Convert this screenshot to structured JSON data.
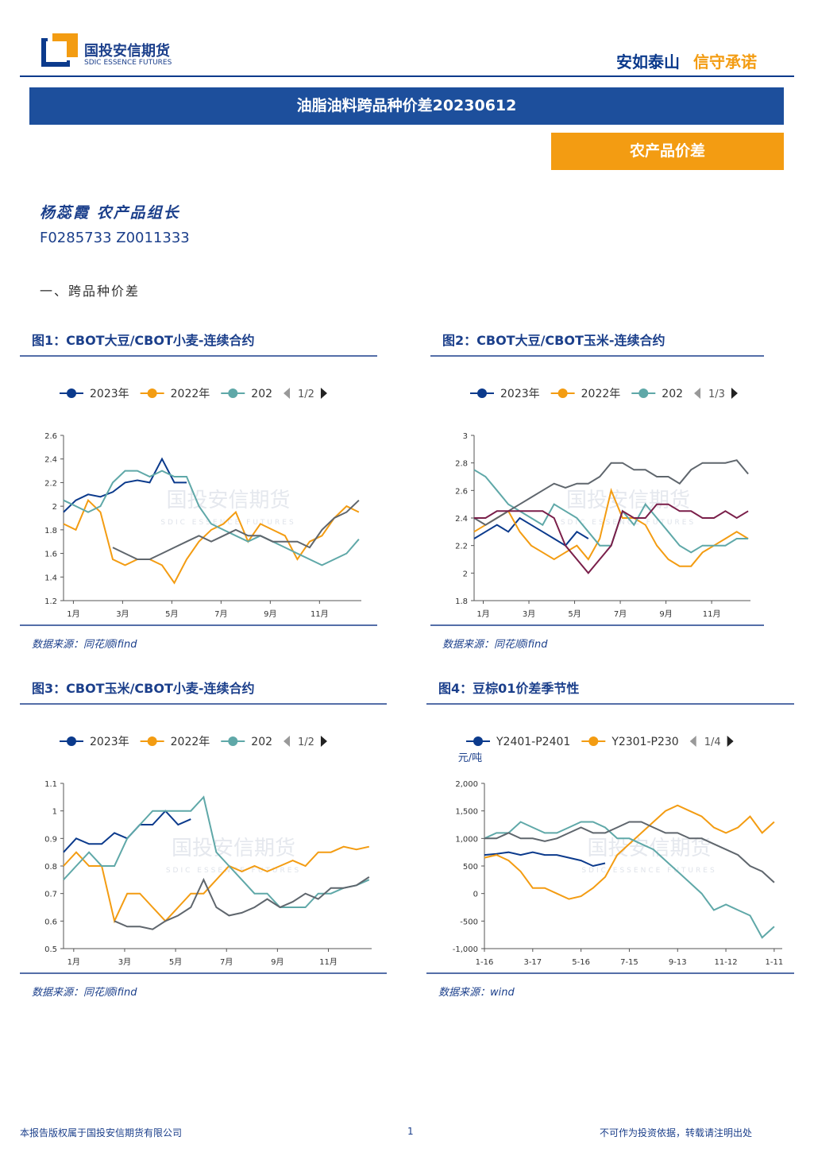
{
  "header": {
    "company": "国投安信期货",
    "company_en": "SDIC ESSENCE FUTURES",
    "slogan_a": "安如泰山",
    "slogan_b": "信守承诺"
  },
  "title": "油脂油料跨品种价差20230612",
  "tag": "农产品价差",
  "author": "杨蕊霞 农产品组长",
  "codes": "F0285733 Z0011333",
  "section": "一、跨品种价差",
  "watermark": "国投安信期货",
  "watermark_en": "SDIC ESSENCE FUTURES",
  "chart_data": [
    {
      "type": "line",
      "title": "图1：CBOT大豆/CBOT小麦-连续合约",
      "source": "数据来源：同花顺ifind",
      "legend_page": "1/2",
      "x": [
        0.6,
        1.1,
        1.6,
        2.1,
        2.6,
        3.1,
        3.6,
        4.1,
        4.6,
        5.1,
        5.6,
        6.1,
        6.6,
        7.1,
        7.6,
        8.1,
        8.6,
        9.1,
        9.6,
        10.1,
        10.6,
        11.1,
        11.6,
        12.1,
        12.6
      ],
      "xlim": [
        0.6,
        12.7
      ],
      "xticks": [
        {
          "value": 1,
          "label": "1月"
        },
        {
          "value": 3,
          "label": "3月"
        },
        {
          "value": 5,
          "label": "5月"
        },
        {
          "value": 7,
          "label": "7月"
        },
        {
          "value": 9,
          "label": "9月"
        },
        {
          "value": 11,
          "label": "11月"
        }
      ],
      "ylim": [
        1.2,
        2.6
      ],
      "yticks": [
        1.2,
        1.4,
        1.6,
        1.8,
        2,
        2.2,
        2.4,
        2.6
      ],
      "series": [
        {
          "name": "2023年",
          "color": "#0b3a8c",
          "values": [
            1.95,
            2.05,
            2.1,
            2.08,
            2.12,
            2.2,
            2.22,
            2.2,
            2.4,
            2.2,
            2.2,
            null,
            null,
            null,
            null,
            null,
            null,
            null,
            null,
            null,
            null,
            null,
            null,
            null,
            null
          ]
        },
        {
          "name": "2022年",
          "color": "#f39c12",
          "values": [
            1.85,
            1.8,
            2.05,
            1.95,
            1.55,
            1.5,
            1.55,
            1.55,
            1.5,
            1.35,
            1.55,
            1.7,
            1.8,
            1.85,
            1.95,
            1.7,
            1.85,
            1.8,
            1.75,
            1.55,
            1.7,
            1.75,
            1.9,
            2.0,
            1.95
          ]
        },
        {
          "name": "202",
          "color": "#5fa8a8",
          "values": [
            2.05,
            2.0,
            1.95,
            2.0,
            2.2,
            2.3,
            2.3,
            2.25,
            2.3,
            2.25,
            2.25,
            2.0,
            1.85,
            1.8,
            1.75,
            1.7,
            1.75,
            1.7,
            1.65,
            1.6,
            1.55,
            1.5,
            1.55,
            1.6,
            1.72
          ]
        },
        {
          "color": "#5f666d",
          "values": [
            null,
            null,
            null,
            null,
            1.65,
            1.6,
            1.55,
            1.55,
            1.6,
            1.65,
            1.7,
            1.75,
            1.7,
            1.75,
            1.8,
            1.75,
            1.75,
            1.7,
            1.7,
            1.7,
            1.65,
            1.8,
            1.9,
            1.95,
            2.05
          ]
        }
      ]
    },
    {
      "type": "line",
      "title": "图2：CBOT大豆/CBOT玉米-连续合约",
      "source": "数据来源：同花顺ifind",
      "legend_page": "1/3",
      "x": [
        0.6,
        1.1,
        1.6,
        2.1,
        2.6,
        3.1,
        3.6,
        4.1,
        4.6,
        5.1,
        5.6,
        6.1,
        6.6,
        7.1,
        7.6,
        8.1,
        8.6,
        9.1,
        9.6,
        10.1,
        10.6,
        11.1,
        11.6,
        12.1,
        12.6
      ],
      "xlim": [
        0.6,
        12.7
      ],
      "xticks": [
        {
          "value": 1,
          "label": "1月"
        },
        {
          "value": 3,
          "label": "3月"
        },
        {
          "value": 5,
          "label": "5月"
        },
        {
          "value": 7,
          "label": "7月"
        },
        {
          "value": 9,
          "label": "9月"
        },
        {
          "value": 11,
          "label": "11月"
        }
      ],
      "ylim": [
        1.8,
        3
      ],
      "yticks": [
        1.8,
        2,
        2.2,
        2.4,
        2.6,
        2.8,
        3
      ],
      "series": [
        {
          "name": "2023年",
          "color": "#0b3a8c",
          "values": [
            2.25,
            2.3,
            2.35,
            2.3,
            2.4,
            2.35,
            2.3,
            2.25,
            2.2,
            2.3,
            2.25,
            null,
            null,
            null,
            null,
            null,
            null,
            null,
            null,
            null,
            null,
            null,
            null,
            null,
            null
          ]
        },
        {
          "name": "2022年",
          "color": "#f39c12",
          "values": [
            2.3,
            2.35,
            2.4,
            2.45,
            2.3,
            2.2,
            2.15,
            2.1,
            2.15,
            2.2,
            2.1,
            2.25,
            2.6,
            2.4,
            2.4,
            2.35,
            2.2,
            2.1,
            2.05,
            2.05,
            2.15,
            2.2,
            2.25,
            2.3,
            2.25
          ]
        },
        {
          "name": "202",
          "color": "#5fa8a8",
          "values": [
            2.75,
            2.7,
            2.6,
            2.5,
            2.45,
            2.4,
            2.35,
            2.5,
            2.45,
            2.4,
            2.3,
            2.2,
            2.2,
            2.45,
            2.35,
            2.5,
            2.4,
            2.3,
            2.2,
            2.15,
            2.2,
            2.2,
            2.2,
            2.25,
            2.25
          ]
        },
        {
          "color": "#5f666d",
          "values": [
            2.4,
            2.35,
            2.4,
            2.45,
            2.5,
            2.55,
            2.6,
            2.65,
            2.62,
            2.65,
            2.65,
            2.7,
            2.8,
            2.8,
            2.75,
            2.75,
            2.7,
            2.7,
            2.65,
            2.75,
            2.8,
            2.8,
            2.8,
            2.82,
            2.72
          ]
        },
        {
          "color": "#7a1f4a",
          "values": [
            2.4,
            2.4,
            2.45,
            2.45,
            2.45,
            2.45,
            2.45,
            2.4,
            2.2,
            2.1,
            2.0,
            2.1,
            2.2,
            2.45,
            2.4,
            2.4,
            2.5,
            2.5,
            2.45,
            2.45,
            2.4,
            2.4,
            2.45,
            2.4,
            2.45
          ]
        }
      ]
    },
    {
      "type": "line",
      "title": "图3：CBOT玉米/CBOT小麦-连续合约",
      "source": "数据来源：同花顺ifind",
      "legend_page": "1/2",
      "x": [
        0.6,
        1.1,
        1.6,
        2.1,
        2.6,
        3.1,
        3.6,
        4.1,
        4.6,
        5.1,
        5.6,
        6.1,
        6.6,
        7.1,
        7.6,
        8.1,
        8.6,
        9.1,
        9.6,
        10.1,
        10.6,
        11.1,
        11.6,
        12.1,
        12.6
      ],
      "xlim": [
        0.6,
        12.7
      ],
      "xticks": [
        {
          "value": 1,
          "label": "1月"
        },
        {
          "value": 3,
          "label": "3月"
        },
        {
          "value": 5,
          "label": "5月"
        },
        {
          "value": 7,
          "label": "7月"
        },
        {
          "value": 9,
          "label": "9月"
        },
        {
          "value": 11,
          "label": "11月"
        }
      ],
      "ylim": [
        0.5,
        1.1
      ],
      "yticks": [
        0.5,
        0.6,
        0.7,
        0.8,
        0.9,
        1,
        1.1
      ],
      "series": [
        {
          "name": "2023年",
          "color": "#0b3a8c",
          "values": [
            0.85,
            0.9,
            0.88,
            0.88,
            0.92,
            0.9,
            0.95,
            0.95,
            1.0,
            0.95,
            0.97,
            null,
            null,
            null,
            null,
            null,
            null,
            null,
            null,
            null,
            null,
            null,
            null,
            null,
            null
          ]
        },
        {
          "name": "2022年",
          "color": "#f39c12",
          "values": [
            0.8,
            0.85,
            0.8,
            0.8,
            0.6,
            0.7,
            0.7,
            0.65,
            0.6,
            0.65,
            0.7,
            0.7,
            0.75,
            0.8,
            0.78,
            0.8,
            0.78,
            0.8,
            0.82,
            0.8,
            0.85,
            0.85,
            0.87,
            0.86,
            0.87
          ]
        },
        {
          "name": "202",
          "color": "#5fa8a8",
          "values": [
            0.75,
            0.8,
            0.85,
            0.8,
            0.8,
            0.9,
            0.95,
            1.0,
            1.0,
            1.0,
            1.0,
            1.05,
            0.85,
            0.8,
            0.75,
            0.7,
            0.7,
            0.65,
            0.65,
            0.65,
            0.7,
            0.7,
            0.72,
            0.73,
            0.75
          ]
        },
        {
          "color": "#5f666d",
          "values": [
            null,
            null,
            null,
            null,
            0.6,
            0.58,
            0.58,
            0.57,
            0.6,
            0.62,
            0.65,
            0.75,
            0.65,
            0.62,
            0.63,
            0.65,
            0.68,
            0.65,
            0.67,
            0.7,
            0.68,
            0.72,
            0.72,
            0.73,
            0.76
          ]
        }
      ]
    },
    {
      "type": "line",
      "title": "图4：豆棕01价差季节性",
      "source": "数据来源：wind",
      "legend_page": "1/4",
      "y_label": "元/吨",
      "x": [
        0,
        15,
        30,
        45,
        60,
        75,
        90,
        105,
        120,
        135,
        150,
        165,
        180,
        195,
        210,
        225,
        240,
        255,
        270,
        285,
        300,
        315,
        330,
        345,
        360
      ],
      "xlim": [
        0,
        370
      ],
      "xticks": [
        {
          "value": 0,
          "label": "1-16"
        },
        {
          "value": 60,
          "label": "3-17"
        },
        {
          "value": 120,
          "label": "5-16"
        },
        {
          "value": 180,
          "label": "7-15"
        },
        {
          "value": 240,
          "label": "9-13"
        },
        {
          "value": 300,
          "label": "11-12"
        },
        {
          "value": 360,
          "label": "1-11"
        }
      ],
      "ylim": [
        -1000,
        2000
      ],
      "yticks": [
        {
          "value": -1000,
          "label": "-1,000"
        },
        -500,
        0,
        500,
        {
          "value": 1000,
          "label": "1,000"
        },
        {
          "value": 1500,
          "label": "1,500"
        },
        {
          "value": 2000,
          "label": "2,000"
        }
      ],
      "series": [
        {
          "name": "Y2401-P2401",
          "color": "#0b3a8c",
          "values": [
            700,
            720,
            750,
            700,
            750,
            700,
            700,
            650,
            600,
            500,
            550,
            null,
            null,
            null,
            null,
            null,
            null,
            null,
            null,
            null,
            null,
            null,
            null,
            null,
            null
          ]
        },
        {
          "name": "Y2301-P230",
          "color": "#f39c12",
          "values": [
            650,
            700,
            600,
            400,
            100,
            100,
            0,
            -100,
            -50,
            100,
            300,
            700,
            900,
            1100,
            1300,
            1500,
            1600,
            1500,
            1400,
            1200,
            1100,
            1200,
            1400,
            1100,
            1300
          ]
        },
        {
          "color": "#5fa8a8",
          "values": [
            1000,
            1100,
            1100,
            1300,
            1200,
            1100,
            1100,
            1200,
            1300,
            1300,
            1200,
            1000,
            1000,
            900,
            800,
            600,
            400,
            200,
            0,
            -300,
            -200,
            -300,
            -400,
            -800,
            -600
          ]
        },
        {
          "color": "#5f666d",
          "values": [
            1000,
            1000,
            1100,
            1000,
            1000,
            950,
            1000,
            1100,
            1200,
            1100,
            1100,
            1200,
            1300,
            1300,
            1200,
            1100,
            1100,
            1000,
            1000,
            900,
            800,
            700,
            500,
            400,
            200
          ]
        }
      ]
    }
  ],
  "footer": {
    "left": "本报告版权属于国投安信期货有限公司",
    "page": "1",
    "right": "不可作为投资依据，转载请注明出处"
  }
}
